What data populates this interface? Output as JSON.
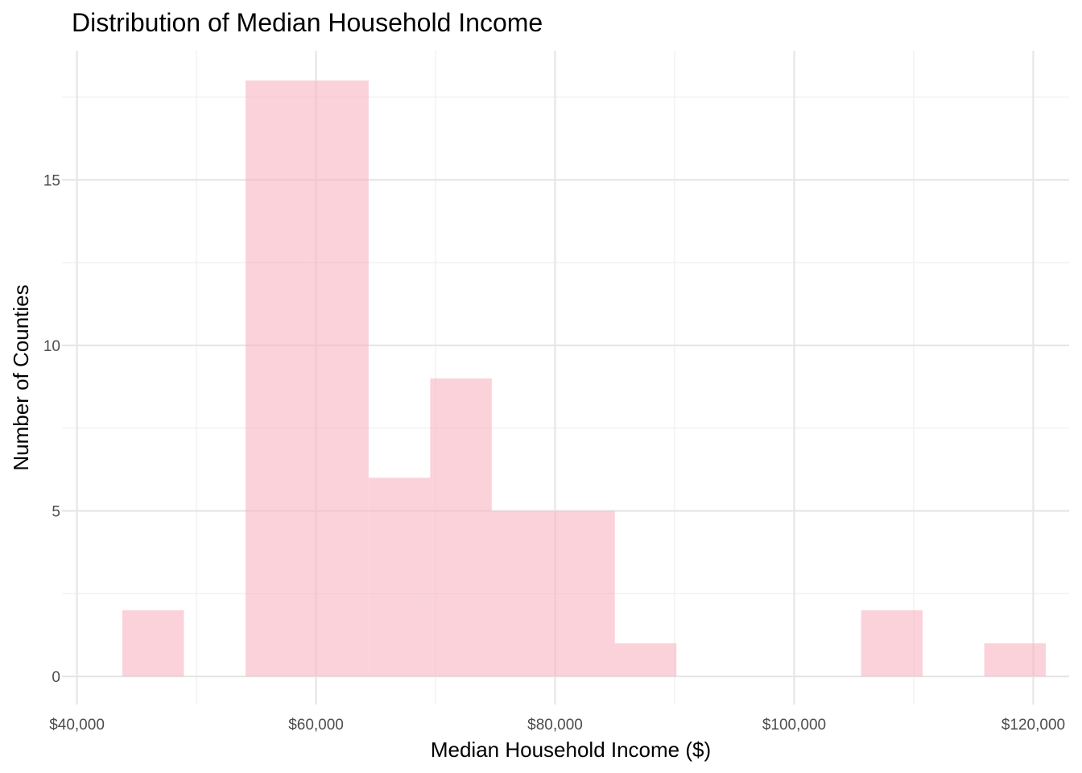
{
  "chart_data": {
    "type": "bar",
    "subtype": "histogram",
    "title": "Distribution of Median Household Income",
    "xlabel": "Median Household Income ($)",
    "ylabel": "Number of Counties",
    "xlim": [
      38750,
      123000
    ],
    "ylim": [
      -0.85,
      18.9
    ],
    "x_ticks": [
      40000,
      60000,
      80000,
      100000,
      120000
    ],
    "x_tick_labels": [
      "$40,000",
      "$60,000",
      "$80,000",
      "$100,000",
      "$120,000"
    ],
    "y_ticks": [
      0,
      5,
      10,
      15
    ],
    "y_tick_labels": [
      "0",
      "5",
      "10",
      "15"
    ],
    "bins": [
      {
        "x0": 43800,
        "x1": 48950,
        "count": 2
      },
      {
        "x0": 48950,
        "x1": 54100,
        "count": 0
      },
      {
        "x0": 54100,
        "x1": 59250,
        "count": 18
      },
      {
        "x0": 59250,
        "x1": 64400,
        "count": 18
      },
      {
        "x0": 64400,
        "x1": 69550,
        "count": 6
      },
      {
        "x0": 69550,
        "x1": 74700,
        "count": 9
      },
      {
        "x0": 74700,
        "x1": 79850,
        "count": 5
      },
      {
        "x0": 79850,
        "x1": 85000,
        "count": 5
      },
      {
        "x0": 85000,
        "x1": 90150,
        "count": 1
      },
      {
        "x0": 90150,
        "x1": 95300,
        "count": 0
      },
      {
        "x0": 95300,
        "x1": 100450,
        "count": 0
      },
      {
        "x0": 100450,
        "x1": 105600,
        "count": 0
      },
      {
        "x0": 105600,
        "x1": 110750,
        "count": 2
      },
      {
        "x0": 110750,
        "x1": 115900,
        "count": 0
      },
      {
        "x0": 115900,
        "x1": 121050,
        "count": 1
      }
    ],
    "grid": true,
    "colors": {
      "bar_fill": "#f9b4c2",
      "bar_opacity": 0.6
    }
  }
}
